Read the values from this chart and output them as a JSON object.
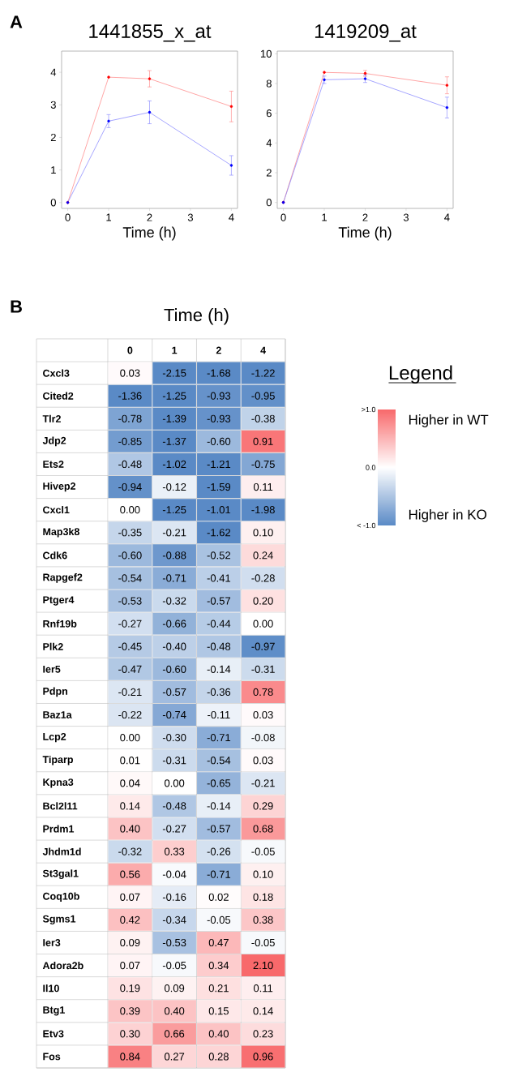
{
  "chart_data": [
    {
      "type": "line",
      "title": "1441855_x_at",
      "xlabel": "Time (h)",
      "annotations": [
        "A"
      ],
      "x": [
        0,
        1,
        2,
        4
      ],
      "xlim": [
        -0.15,
        4.15
      ],
      "xticks": [
        0,
        1,
        2,
        3,
        4
      ],
      "ylim": [
        -0.18,
        4.65
      ],
      "yticks": [
        0,
        1,
        2,
        3,
        4
      ],
      "marker": "circle",
      "line_style": "solid",
      "series": [
        {
          "color": "#ff0000",
          "values": [
            0,
            3.85,
            3.8,
            2.95
          ],
          "errors": [
            null,
            null,
            0.25,
            0.47
          ]
        },
        {
          "color": "#0000ff",
          "values": [
            0,
            2.5,
            2.77,
            1.14
          ],
          "errors": [
            null,
            0.2,
            0.35,
            0.3
          ]
        }
      ]
    },
    {
      "type": "line",
      "title": "1419209_at",
      "xlabel": "Time (h)",
      "x": [
        0,
        1,
        2,
        4
      ],
      "xlim": [
        -0.15,
        4.15
      ],
      "xticks": [
        0,
        1,
        2,
        3,
        4
      ],
      "ylim": [
        -0.4,
        10.18
      ],
      "yticks": [
        0,
        2,
        4,
        6,
        8,
        10
      ],
      "marker": "circle",
      "line_style": "solid",
      "series": [
        {
          "color": "#ff0000",
          "values": [
            0,
            8.75,
            8.68,
            7.88
          ],
          "errors": [
            null,
            null,
            0.2,
            0.57
          ]
        },
        {
          "color": "#0000ff",
          "values": [
            0,
            8.25,
            8.32,
            6.38
          ],
          "errors": [
            null,
            0.25,
            0.25,
            0.7
          ]
        }
      ]
    },
    {
      "type": "heatmap",
      "xlabel": "Time (h)",
      "clabel": "Legend",
      "annotations": [
        "B",
        "Higher in WT",
        "Higher in KO"
      ],
      "categories": [
        "0",
        "1",
        "2",
        "4"
      ],
      "y_categories": [
        "Cxcl3",
        "Cited2",
        "Tlr2",
        "Jdp2",
        "Ets2",
        "Hivep2",
        "Cxcl1",
        "Map3k8",
        "Cdk6",
        "Rapgef2",
        "Ptger4",
        "Rnf19b",
        "Plk2",
        "Ier5",
        "Pdpn",
        "Baz1a",
        "Lcp2",
        "Tiparp",
        "Kpna3",
        "Bcl2l11",
        "Prdm1",
        "Jhdm1d",
        "St3gal1",
        "Coq10b",
        "Sgms1",
        "Ier3",
        "Adora2b",
        "Il10",
        "Btg1",
        "Etv3",
        "Fos"
      ],
      "cells": [
        [
          0.03,
          -2.15,
          -1.68,
          -1.22
        ],
        [
          -1.36,
          -1.25,
          -0.93,
          -0.95
        ],
        [
          -0.78,
          -1.39,
          -0.93,
          -0.38
        ],
        [
          -0.85,
          -1.37,
          -0.6,
          0.91
        ],
        [
          -0.48,
          -1.02,
          -1.21,
          -0.75
        ],
        [
          -0.94,
          -0.12,
          -1.59,
          0.11
        ],
        [
          0.0,
          -1.25,
          -1.01,
          -1.98
        ],
        [
          -0.35,
          -0.21,
          -1.62,
          0.1
        ],
        [
          -0.6,
          -0.88,
          -0.52,
          0.24
        ],
        [
          -0.54,
          -0.71,
          -0.41,
          -0.28
        ],
        [
          -0.53,
          -0.32,
          -0.57,
          0.2
        ],
        [
          -0.27,
          -0.66,
          -0.44,
          0.0
        ],
        [
          -0.45,
          -0.4,
          -0.48,
          -0.97
        ],
        [
          -0.47,
          -0.6,
          -0.14,
          -0.31
        ],
        [
          -0.21,
          -0.57,
          -0.36,
          0.78
        ],
        [
          -0.22,
          -0.74,
          -0.11,
          0.03
        ],
        [
          0.0,
          -0.3,
          -0.71,
          -0.08
        ],
        [
          0.01,
          -0.31,
          -0.54,
          0.03
        ],
        [
          0.04,
          0.0,
          -0.65,
          -0.21
        ],
        [
          0.14,
          -0.48,
          -0.14,
          0.29
        ],
        [
          0.4,
          -0.27,
          -0.57,
          0.68
        ],
        [
          -0.32,
          0.33,
          -0.26,
          -0.05
        ],
        [
          0.56,
          -0.04,
          -0.71,
          0.1
        ],
        [
          0.07,
          -0.16,
          0.02,
          0.18
        ],
        [
          0.42,
          -0.34,
          -0.05,
          0.38
        ],
        [
          0.09,
          -0.53,
          0.47,
          -0.05
        ],
        [
          0.07,
          -0.05,
          0.34,
          2.1
        ],
        [
          0.19,
          0.09,
          0.21,
          0.11
        ],
        [
          0.39,
          0.4,
          0.15,
          0.14
        ],
        [
          0.3,
          0.66,
          0.4,
          0.23
        ],
        [
          0.84,
          0.27,
          0.28,
          0.96
        ]
      ],
      "cell_labels": [
        [
          "0.03",
          "-2.15",
          "-1.68",
          "-1.22"
        ],
        [
          "-1.36",
          "-1.25",
          "-0.93",
          "-0.95"
        ],
        [
          "-0.78",
          "-1.39",
          "-0.93",
          "-0.38"
        ],
        [
          "-0.85",
          "-1.37",
          "-0.60",
          "0.91"
        ],
        [
          "-0.48",
          "-1.02",
          "-1.21",
          "-0.75"
        ],
        [
          "-0.94",
          "-0.12",
          "-1.59",
          "0.11"
        ],
        [
          "0.00",
          "-1.25",
          "-1.01",
          "-1.98"
        ],
        [
          "-0.35",
          "-0.21",
          "-1.62",
          "0.10"
        ],
        [
          "-0.60",
          "-0.88",
          "-0.52",
          "0.24"
        ],
        [
          "-0.54",
          "-0.71",
          "-0.41",
          "-0.28"
        ],
        [
          "-0.53",
          "-0.32",
          "-0.57",
          "0.20"
        ],
        [
          "-0.27",
          "-0.66",
          "-0.44",
          "0.00"
        ],
        [
          "-0.45",
          "-0.40",
          "-0.48",
          "-0.97"
        ],
        [
          "-0.47",
          "-0.60",
          "-0.14",
          "-0.31"
        ],
        [
          "-0.21",
          "-0.57",
          "-0.36",
          "0.78"
        ],
        [
          "-0.22",
          "-0.74",
          "-0.11",
          "0.03"
        ],
        [
          "0.00",
          "-0.30",
          "-0.71",
          "-0.08"
        ],
        [
          "0.01",
          "-0.31",
          "-0.54",
          "0.03"
        ],
        [
          "0.04",
          "0.00",
          "-0.65",
          "-0.21"
        ],
        [
          "0.14",
          "-0.48",
          "-0.14",
          "0.29"
        ],
        [
          "0.40",
          "-0.27",
          "-0.57",
          "0.68"
        ],
        [
          "-0.32",
          "0.33",
          "-0.26",
          "-0.05"
        ],
        [
          "0.56",
          "-0.04",
          "-0.71",
          "0.10"
        ],
        [
          "0.07",
          "-0.16",
          "0.02",
          "0.18"
        ],
        [
          "0.42",
          "-0.34",
          "-0.05",
          "0.38"
        ],
        [
          "0.09",
          "-0.53",
          "0.47",
          "-0.05"
        ],
        [
          "0.07",
          "-0.05",
          "0.34",
          "2.10"
        ],
        [
          "0.19",
          "0.09",
          "0.21",
          "0.11"
        ],
        [
          "0.39",
          "0.40",
          "0.15",
          "0.14"
        ],
        [
          "0.30",
          "0.66",
          "0.40",
          "0.23"
        ],
        [
          "0.84",
          "0.27",
          "0.28",
          "0.96"
        ]
      ],
      "clim": [
        -1,
        1
      ],
      "cticks": [
        {
          "value": -1,
          "label": "< -1.0"
        },
        {
          "value": 0,
          "label": "0.0"
        },
        {
          "value": 1,
          "label": ">1.0"
        }
      ]
    }
  ]
}
